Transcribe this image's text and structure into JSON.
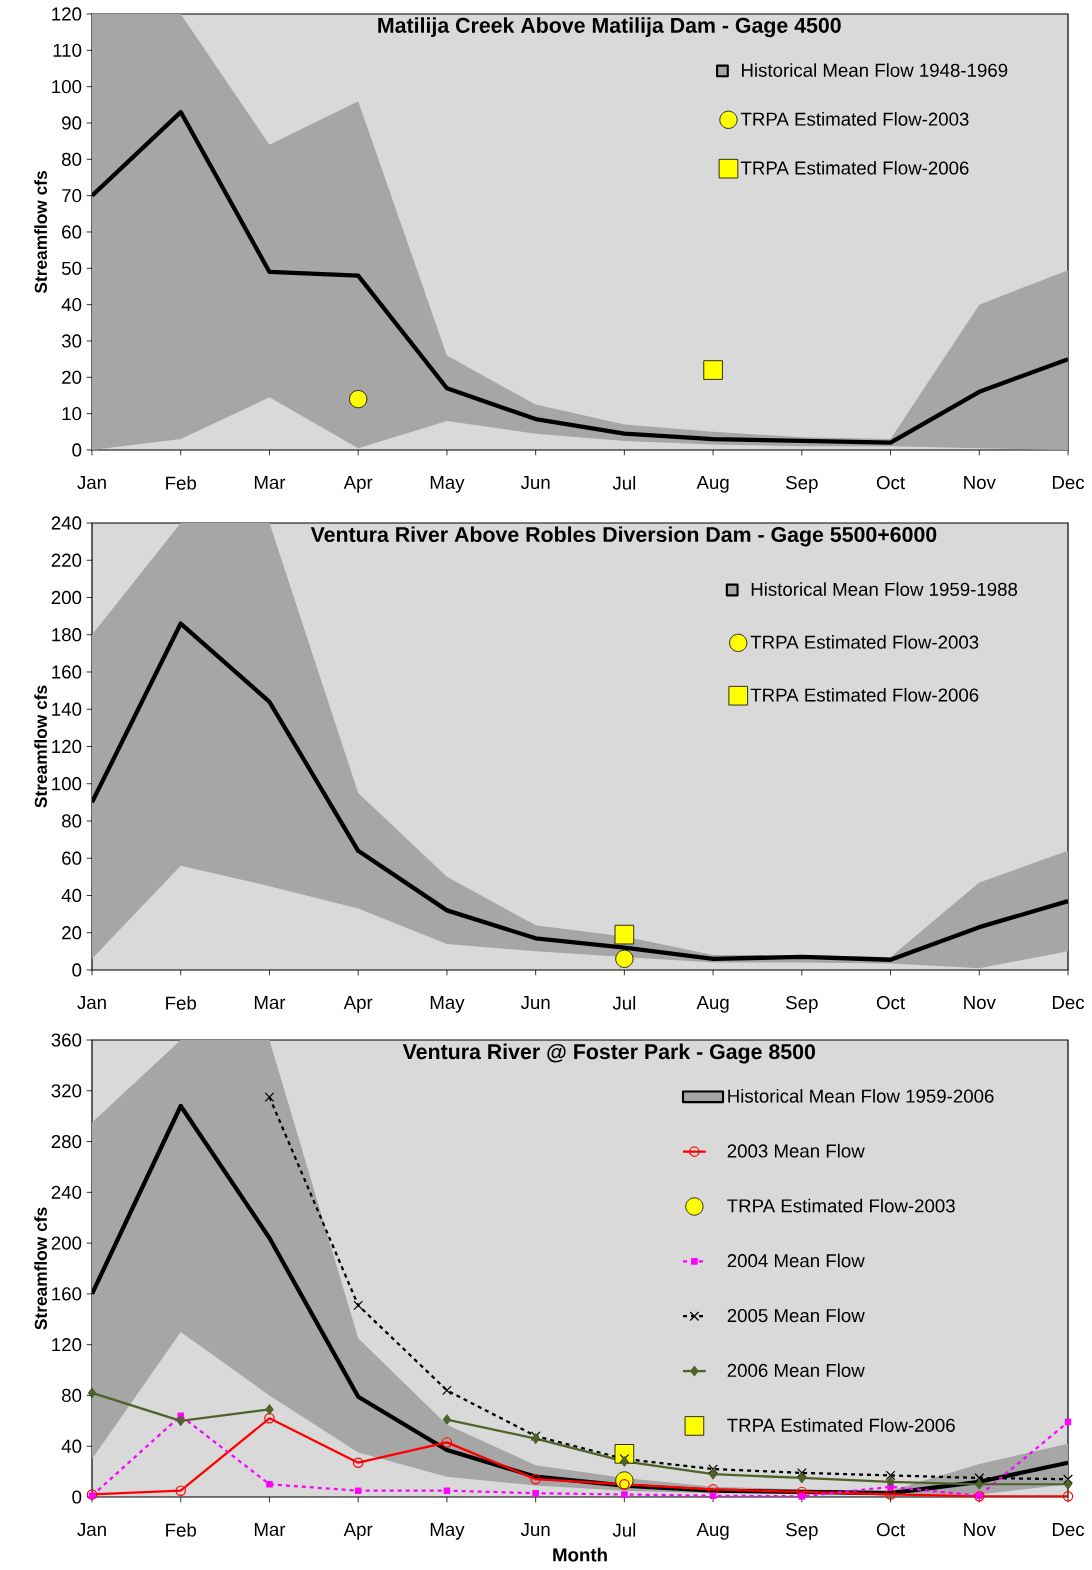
{
  "chart_data": [
    {
      "type": "line",
      "title": "Matilija Creek Above Matilija Dam - Gage 4500",
      "ylabel": "Streamflow cfs",
      "categories": [
        "Jan",
        "Feb",
        "Mar",
        "Apr",
        "May",
        "Jun",
        "Jul",
        "Aug",
        "Sep",
        "Oct",
        "Nov",
        "Dec"
      ],
      "ylim": [
        0,
        120
      ],
      "yticks": [
        0,
        10,
        20,
        30,
        40,
        50,
        60,
        70,
        80,
        90,
        100,
        110,
        120
      ],
      "legend": "top right",
      "series": [
        {
          "name": "Historical Mean Flow 1948-1969",
          "color": "#000000",
          "values": [
            70,
            93,
            49,
            48,
            17,
            8.5,
            4.5,
            3,
            2.5,
            2,
            16,
            25
          ],
          "lower": [
            0,
            3,
            14.5,
            0.5,
            8,
            4.5,
            2.5,
            1.5,
            1,
            1,
            0.5,
            0
          ],
          "upper": [
            120,
            120,
            84,
            96,
            26,
            12.5,
            7,
            5,
            3.5,
            3,
            40,
            49.5
          ]
        },
        {
          "name": "TRPA Estimated Flow-2003",
          "type": "scatter",
          "marker": "circle",
          "color": "#ffff00",
          "values": [
            null,
            null,
            null,
            14,
            null,
            null,
            null,
            null,
            null,
            null,
            null,
            null
          ]
        },
        {
          "name": "TRPA Estimated Flow-2006",
          "type": "scatter",
          "marker": "square",
          "color": "#ffff00",
          "values": [
            null,
            null,
            null,
            null,
            null,
            null,
            null,
            22,
            null,
            null,
            null,
            null
          ]
        }
      ]
    },
    {
      "type": "line",
      "title": "Ventura River Above Robles Diversion Dam - Gage 5500+6000",
      "ylabel": "Streamflow cfs",
      "categories": [
        "Jan",
        "Feb",
        "Mar",
        "Apr",
        "May",
        "Jun",
        "Jul",
        "Aug",
        "Sep",
        "Oct",
        "Nov",
        "Dec"
      ],
      "ylim": [
        0,
        240
      ],
      "yticks": [
        0,
        20,
        40,
        60,
        80,
        100,
        120,
        140,
        160,
        180,
        200,
        220,
        240
      ],
      "legend": "top right",
      "series": [
        {
          "name": "Historical Mean Flow 1959-1988",
          "color": "#000000",
          "values": [
            90,
            186,
            144,
            64,
            32,
            17,
            12,
            6,
            7,
            5.5,
            23,
            37
          ],
          "lower": [
            6,
            56,
            45,
            33,
            14,
            10,
            7,
            4,
            4,
            3.5,
            1,
            10
          ],
          "upper": [
            180,
            240,
            240,
            95,
            50,
            24,
            18,
            8,
            8,
            7,
            47,
            64
          ]
        },
        {
          "name": "TRPA Estimated Flow-2003",
          "type": "scatter",
          "marker": "circle",
          "color": "#ffff00",
          "values": [
            null,
            null,
            null,
            null,
            null,
            null,
            6,
            null,
            null,
            null,
            null,
            null
          ]
        },
        {
          "name": "TRPA Estimated Flow-2006",
          "type": "scatter",
          "marker": "square",
          "color": "#ffff00",
          "values": [
            null,
            null,
            null,
            null,
            null,
            null,
            19,
            null,
            null,
            null,
            null,
            null
          ]
        }
      ]
    },
    {
      "type": "line",
      "title": "Ventura River @ Foster Park - Gage 8500",
      "xlabel": "Month",
      "ylabel": "Streamflow cfs",
      "categories": [
        "Jan",
        "Feb",
        "Mar",
        "Apr",
        "May",
        "Jun",
        "Jul",
        "Aug",
        "Sep",
        "Oct",
        "Nov",
        "Dec"
      ],
      "ylim": [
        0,
        360
      ],
      "yticks": [
        0,
        40,
        80,
        120,
        160,
        200,
        240,
        280,
        320,
        360
      ],
      "legend": "top right",
      "series": [
        {
          "name": "Historical Mean Flow 1959-2006",
          "color": "#000000",
          "values": [
            160,
            308,
            204,
            79,
            37,
            16,
            9,
            5,
            4,
            3,
            12,
            27
          ],
          "lower": [
            30,
            130,
            80,
            35,
            16,
            9,
            5,
            3,
            3,
            1,
            2,
            10
          ],
          "upper": [
            295,
            360,
            360,
            125,
            57,
            25,
            15,
            8,
            6,
            5,
            26,
            42
          ]
        },
        {
          "name": "2003 Mean Flow",
          "marker": "circle",
          "color": "#ff0000",
          "values": [
            2,
            5,
            62,
            27,
            43,
            14,
            10,
            6,
            4,
            2,
            0.5,
            0.5
          ]
        },
        {
          "name": "TRPA Estimated Flow-2003",
          "type": "scatter",
          "marker": "circle",
          "color": "#ffff00",
          "values": [
            null,
            null,
            null,
            null,
            null,
            null,
            13,
            null,
            null,
            null,
            null,
            null
          ]
        },
        {
          "name": "2004 Mean Flow",
          "marker": "square",
          "line_style": "dashed",
          "color": "#ff00ff",
          "values": [
            1,
            64,
            10,
            5,
            5,
            3,
            2,
            1,
            0.5,
            8,
            1,
            59
          ]
        },
        {
          "name": "2005 Mean Flow",
          "marker": "cross",
          "line_style": "dashed",
          "color": "#000000",
          "values": [
            null,
            null,
            315,
            151,
            84,
            48,
            30,
            22,
            19,
            17,
            15,
            14
          ]
        },
        {
          "name": "2006 Mean Flow",
          "marker": "diamond",
          "color": "#4f6228",
          "values": [
            82,
            60,
            69,
            null,
            61,
            46,
            28,
            18,
            15,
            12,
            10,
            10
          ]
        },
        {
          "name": "TRPA Estimated Flow-2006",
          "type": "scatter",
          "marker": "square",
          "color": "#ffff00",
          "values": [
            null,
            null,
            null,
            null,
            null,
            null,
            34,
            null,
            null,
            null,
            null,
            null
          ]
        }
      ]
    }
  ]
}
